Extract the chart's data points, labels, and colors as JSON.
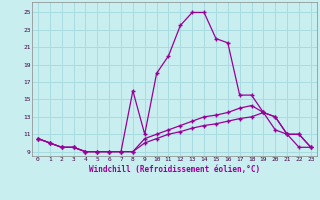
{
  "bg_color": "#c8eef0",
  "grid_color": "#a8dce0",
  "line_color": "#990099",
  "xlabel": "Windchill (Refroidissement éolien,°C)",
  "xlim": [
    -0.5,
    23.5
  ],
  "ylim": [
    8.5,
    26.2
  ],
  "yticks": [
    9,
    11,
    13,
    15,
    17,
    19,
    21,
    23,
    25
  ],
  "xticks": [
    0,
    1,
    2,
    3,
    4,
    5,
    6,
    7,
    8,
    9,
    10,
    11,
    12,
    13,
    14,
    15,
    16,
    17,
    18,
    19,
    20,
    21,
    22,
    23
  ],
  "line_top_x": [
    0,
    1,
    2,
    3,
    4,
    5,
    6,
    7,
    8,
    9,
    10,
    11,
    12,
    13,
    14,
    15,
    16,
    17,
    18,
    19,
    20,
    21,
    22,
    23
  ],
  "line_top_y": [
    10.5,
    10.0,
    9.5,
    9.5,
    9.0,
    9.0,
    9.0,
    9.0,
    16.0,
    11.0,
    18.0,
    20.0,
    23.5,
    25.0,
    25.0,
    22.0,
    21.5,
    15.5,
    15.5,
    13.5,
    11.5,
    11.0,
    9.5,
    9.5
  ],
  "line_mid_x": [
    0,
    1,
    2,
    3,
    4,
    5,
    6,
    7,
    8,
    9,
    10,
    11,
    12,
    13,
    14,
    15,
    16,
    17,
    18,
    19,
    20,
    21,
    22,
    23
  ],
  "line_mid_y": [
    10.5,
    10.0,
    9.5,
    9.5,
    9.0,
    9.0,
    9.0,
    9.0,
    9.0,
    10.5,
    11.0,
    11.5,
    12.0,
    12.5,
    13.0,
    13.2,
    13.5,
    14.0,
    14.3,
    13.5,
    13.0,
    11.0,
    11.0,
    9.5
  ],
  "line_bot_x": [
    0,
    1,
    2,
    3,
    4,
    5,
    6,
    7,
    8,
    9,
    10,
    11,
    12,
    13,
    14,
    15,
    16,
    17,
    18,
    19,
    20,
    21,
    22,
    23
  ],
  "line_bot_y": [
    10.5,
    10.0,
    9.5,
    9.5,
    9.0,
    9.0,
    9.0,
    9.0,
    9.0,
    10.0,
    10.5,
    11.0,
    11.3,
    11.7,
    12.0,
    12.2,
    12.5,
    12.8,
    13.0,
    13.5,
    13.0,
    11.0,
    11.0,
    9.5
  ]
}
